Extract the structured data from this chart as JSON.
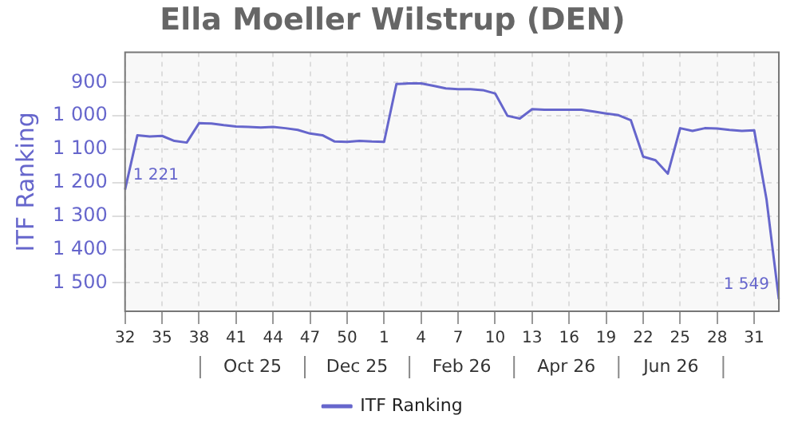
{
  "chart_data": {
    "type": "line",
    "title": "Ella Moeller Wilstrup (DEN)",
    "ylabel": "ITF Ranking",
    "categories": [
      "32",
      null,
      null,
      "35",
      null,
      null,
      "38",
      null,
      null,
      "41",
      null,
      null,
      "44",
      null,
      null,
      "47",
      null,
      null,
      "50",
      null,
      null,
      "1",
      null,
      null,
      "4",
      null,
      null,
      "7",
      null,
      null,
      "10",
      null,
      null,
      "13",
      null,
      null,
      "16",
      null,
      null,
      "19",
      null,
      null,
      "22",
      null,
      null,
      "25",
      null,
      null,
      "28",
      null,
      null,
      "31",
      null,
      null
    ],
    "series": [
      {
        "name": "ITF Ranking",
        "color": "#6666cc",
        "values": [
          1221,
          1058,
          1062,
          1060,
          1075,
          1080,
          1022,
          1023,
          1028,
          1032,
          1033,
          1035,
          1033,
          1037,
          1042,
          1053,
          1058,
          1077,
          1078,
          1075,
          1077,
          1078,
          905,
          903,
          903,
          910,
          918,
          920,
          920,
          923,
          933,
          1000,
          1008,
          980,
          982,
          982,
          982,
          982,
          987,
          993,
          998,
          1013,
          1122,
          1133,
          1173,
          1037,
          1045,
          1037,
          1038,
          1042,
          1045,
          1043,
          1250,
          1549
        ],
        "value_labels": [
          "1 221",
          null,
          null,
          null,
          null,
          null,
          null,
          null,
          null,
          null,
          null,
          null,
          null,
          null,
          null,
          null,
          null,
          null,
          null,
          null,
          null,
          null,
          null,
          null,
          null,
          null,
          null,
          null,
          null,
          null,
          null,
          null,
          null,
          null,
          null,
          null,
          null,
          null,
          null,
          null,
          null,
          null,
          null,
          null,
          null,
          null,
          null,
          null,
          null,
          null,
          null,
          null,
          null,
          "1 549"
        ]
      }
    ],
    "ylim": [
      1585,
      810
    ],
    "yticks": [
      {
        "value": 900,
        "label": "900"
      },
      {
        "value": 1000,
        "label": "1 000"
      },
      {
        "value": 1100,
        "label": "1 100"
      },
      {
        "value": 1200,
        "label": "1 200"
      },
      {
        "value": 1300,
        "label": "1 300"
      },
      {
        "value": 1400,
        "label": "1 400"
      },
      {
        "value": 1500,
        "label": "1 500"
      }
    ],
    "annotations": [
      "Oct 25",
      "Dec 25",
      "Feb 26",
      "Apr 26",
      "Jun 26"
    ],
    "grid": true,
    "legend": "bottom",
    "marker": "none",
    "line_style": "solid"
  }
}
